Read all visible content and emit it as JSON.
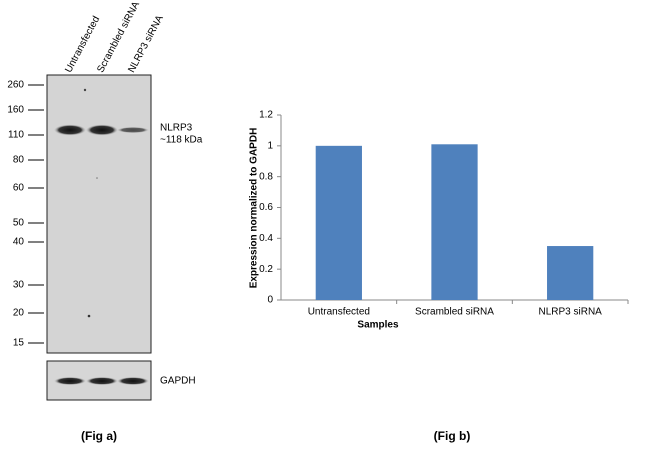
{
  "blot": {
    "lanes": [
      "Untransfected",
      "Scrambled siRNA",
      "NLRP3 siRNA"
    ],
    "markers": [
      260,
      160,
      110,
      80,
      60,
      50,
      40,
      30,
      20,
      15
    ],
    "bands": [
      {
        "name": "NLRP3",
        "size": "~118 kDa"
      },
      {
        "name": "GAPDH"
      }
    ],
    "caption": "(Fig a)"
  },
  "chart_data": {
    "type": "bar",
    "categories": [
      "Untransfected",
      "Scrambled siRNA",
      "NLRP3 siRNA"
    ],
    "values": [
      1.0,
      1.01,
      0.35
    ],
    "color": "#4f81bd",
    "ylim": [
      0,
      1.2
    ],
    "yticks": [
      0,
      0.2,
      0.4,
      0.6,
      0.8,
      1,
      1.2
    ],
    "grid": false,
    "x_label": "Samples",
    "y_label": "Expression  normalized to GAPDH",
    "caption": "(Fig b)"
  }
}
